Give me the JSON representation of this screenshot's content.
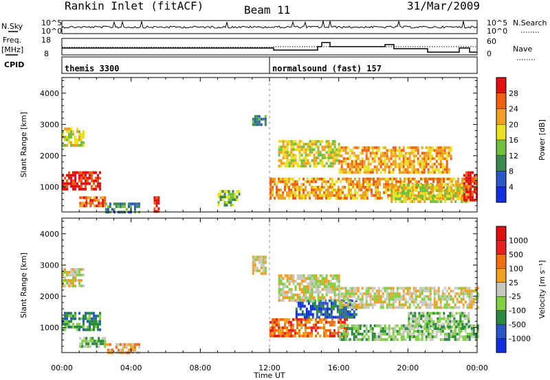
{
  "header": {
    "station": "Rankin Inlet (fitACF)",
    "beam": "Beam 11",
    "date": "31/Mar/2009"
  },
  "strip": {
    "nsky_label": "N.Sky",
    "nsky_ticks": [
      "10^5",
      "10^0"
    ],
    "nsearch_label": "N.Search",
    "nsearch_ticks": [
      "10^5",
      "10^0"
    ],
    "freq_label": "Freq.",
    "freq_unit": "[MHz]",
    "freq_ticks": [
      "18",
      "8"
    ],
    "nave_label": "Nave",
    "nave_ticks": [
      "60",
      "0"
    ],
    "cpid_label": "CPID",
    "cpid_modes": [
      {
        "name": "themis 3300",
        "start_hour": 0
      },
      {
        "name": "normalsound (fast) 157",
        "start_hour": 12
      }
    ]
  },
  "chart_data": [
    {
      "type": "heatmap",
      "title": "",
      "ylabel": "Slant Range [km]",
      "xlabel": "",
      "xlim_hours": [
        0,
        24
      ],
      "ylim": [
        200,
        4500
      ],
      "yticks": [
        1000,
        2000,
        3000,
        4000
      ],
      "colorbar": {
        "label": "Power [dB]",
        "tick_labels": [
          "4",
          "8",
          "12",
          "16",
          "20",
          "24",
          "28"
        ],
        "colors": [
          "#1030e0",
          "#2a56c8",
          "#3a8a50",
          "#70c040",
          "#e8e020",
          "#f0a020",
          "#f06010",
          "#e01010"
        ]
      },
      "regions": [
        {
          "t0": 0.0,
          "t1": 2.2,
          "r0": 900,
          "r1": 1500,
          "level": 7
        },
        {
          "t0": 0.0,
          "t1": 1.2,
          "r0": 2300,
          "r1": 2900,
          "level": 4
        },
        {
          "t0": 1.0,
          "t1": 2.5,
          "r0": 350,
          "r1": 700,
          "level": 6
        },
        {
          "t0": 2.5,
          "t1": 4.5,
          "r0": 200,
          "r1": 500,
          "level": 2
        },
        {
          "t0": 5.3,
          "t1": 5.6,
          "r0": 200,
          "r1": 700,
          "level": 7
        },
        {
          "t0": 9.0,
          "t1": 10.2,
          "r0": 400,
          "r1": 900,
          "level": 3
        },
        {
          "t0": 11.0,
          "t1": 11.8,
          "r0": 3000,
          "r1": 3300,
          "level": 2
        },
        {
          "t0": 12.0,
          "t1": 24.0,
          "r0": 600,
          "r1": 1300,
          "level": 5
        },
        {
          "t0": 12.5,
          "t1": 16.0,
          "r0": 1700,
          "r1": 2500,
          "level": 4
        },
        {
          "t0": 16.0,
          "t1": 22.5,
          "r0": 1500,
          "r1": 2300,
          "level": 5
        },
        {
          "t0": 19.0,
          "t1": 23.5,
          "r0": 500,
          "r1": 1100,
          "level": 4
        },
        {
          "t0": 23.2,
          "t1": 24.0,
          "r0": 600,
          "r1": 1500,
          "level": 7
        }
      ]
    },
    {
      "type": "heatmap",
      "title": "",
      "ylabel": "Slant Range [km]",
      "xlabel": "Time UT",
      "xlim_hours": [
        0,
        24
      ],
      "ylim": [
        200,
        4500
      ],
      "yticks": [
        1000,
        2000,
        3000,
        4000
      ],
      "xtick_labels": [
        "00:00",
        "04:00",
        "08:00",
        "12:00",
        "16:00",
        "20:00",
        "00:00"
      ],
      "colorbar": {
        "label": "Velocity [m s⁻¹]",
        "tick_labels": [
          "1000",
          "500",
          "100",
          "25",
          "-25",
          "-100",
          "-500",
          "-1000"
        ],
        "colors": [
          "#1030e0",
          "#2a56c8",
          "#2a8a40",
          "#80d040",
          "#c8c8c0",
          "#f0a020",
          "#f07010",
          "#e82020",
          "#e01010"
        ]
      },
      "regions": [
        {
          "t0": 0.0,
          "t1": 2.2,
          "r0": 900,
          "r1": 1500,
          "level": 2
        },
        {
          "t0": 0.0,
          "t1": 1.2,
          "r0": 2300,
          "r1": 2900,
          "level": 4
        },
        {
          "t0": 1.0,
          "t1": 2.5,
          "r0": 350,
          "r1": 700,
          "level": 3
        },
        {
          "t0": 2.5,
          "t1": 4.5,
          "r0": 200,
          "r1": 500,
          "level": 5
        },
        {
          "t0": 11.0,
          "t1": 11.8,
          "r0": 2700,
          "r1": 3300,
          "level": 4
        },
        {
          "t0": 12.0,
          "t1": 16.5,
          "r0": 700,
          "r1": 1300,
          "level": 6
        },
        {
          "t0": 13.5,
          "t1": 17.0,
          "r0": 1300,
          "r1": 1900,
          "level": 1
        },
        {
          "t0": 12.5,
          "t1": 16.0,
          "r0": 1900,
          "r1": 2700,
          "level": 4
        },
        {
          "t0": 16.0,
          "t1": 24.0,
          "r0": 1600,
          "r1": 2300,
          "level": 4
        },
        {
          "t0": 16.0,
          "t1": 24.0,
          "r0": 600,
          "r1": 1100,
          "level": 3
        },
        {
          "t0": 20.0,
          "t1": 23.5,
          "r0": 1000,
          "r1": 1500,
          "level": 3
        }
      ]
    }
  ]
}
